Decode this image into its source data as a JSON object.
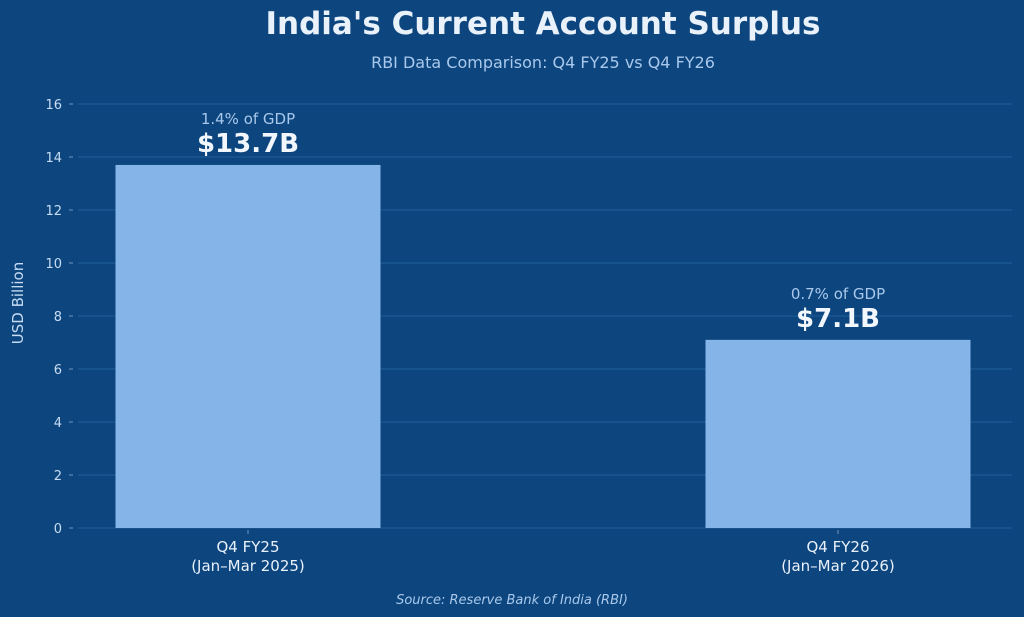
{
  "chart_data": {
    "type": "bar",
    "title": "India's Current Account Surplus",
    "subtitle": "RBI Data Comparison: Q4 FY25 vs Q4 FY26",
    "ylabel": "USD Billion",
    "xlabel": "",
    "ylim": [
      0,
      16
    ],
    "yticks": [
      0,
      2,
      4,
      6,
      8,
      10,
      12,
      14,
      16
    ],
    "grid": true,
    "categories": [
      [
        "Q4 FY25",
        "(Jan–Mar 2025)"
      ],
      [
        "Q4 FY26",
        "(Jan–Mar 2026)"
      ]
    ],
    "values": [
      13.7,
      7.1
    ],
    "value_labels": [
      "$13.7B",
      "$7.1B"
    ],
    "gdp_labels": [
      "1.4% of GDP",
      "0.7% of GDP"
    ],
    "source": "Source: Reserve Bank of India (RBI)",
    "colors": {
      "background": "#0d467e",
      "bar": "#85b4e8",
      "grid": "#1f5f99"
    }
  }
}
